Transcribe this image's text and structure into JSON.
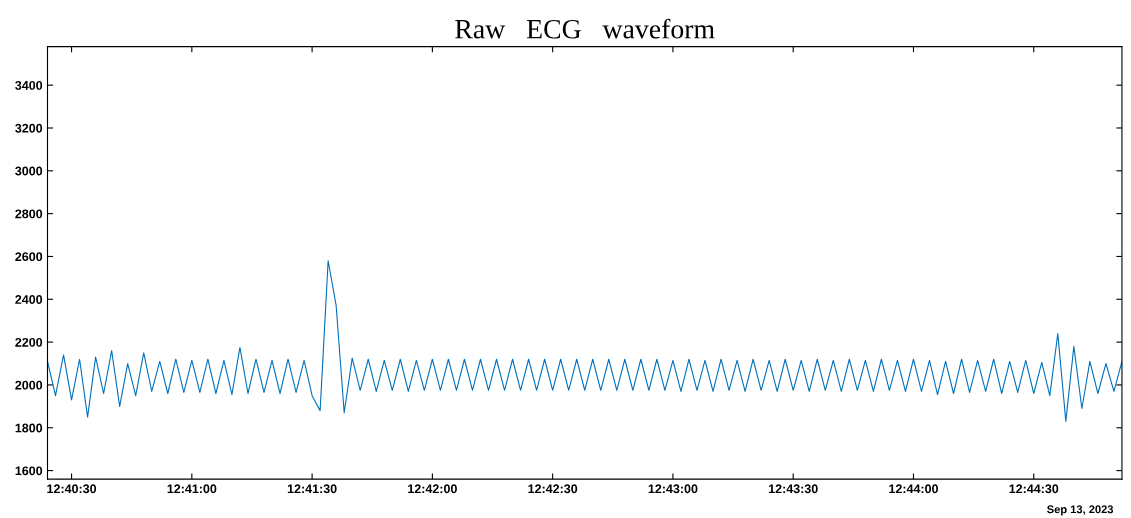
{
  "chart_data": {
    "type": "line",
    "title": "Raw   ECG   waveform",
    "x": [
      "2023-09-13T12:40:24",
      "2023-09-13T12:40:26",
      "2023-09-13T12:40:28",
      "2023-09-13T12:40:30",
      "2023-09-13T12:40:32",
      "2023-09-13T12:40:34",
      "2023-09-13T12:40:36",
      "2023-09-13T12:40:38",
      "2023-09-13T12:40:40",
      "2023-09-13T12:40:42",
      "2023-09-13T12:40:44",
      "2023-09-13T12:40:46",
      "2023-09-13T12:40:48",
      "2023-09-13T12:40:50",
      "2023-09-13T12:40:52",
      "2023-09-13T12:40:54",
      "2023-09-13T12:40:56",
      "2023-09-13T12:40:58",
      "2023-09-13T12:41:00",
      "2023-09-13T12:41:02",
      "2023-09-13T12:41:04",
      "2023-09-13T12:41:06",
      "2023-09-13T12:41:08",
      "2023-09-13T12:41:10",
      "2023-09-13T12:41:12",
      "2023-09-13T12:41:14",
      "2023-09-13T12:41:16",
      "2023-09-13T12:41:18",
      "2023-09-13T12:41:20",
      "2023-09-13T12:41:22",
      "2023-09-13T12:41:24",
      "2023-09-13T12:41:26",
      "2023-09-13T12:41:28",
      "2023-09-13T12:41:30",
      "2023-09-13T12:41:32",
      "2023-09-13T12:41:34",
      "2023-09-13T12:41:36",
      "2023-09-13T12:41:38",
      "2023-09-13T12:41:40",
      "2023-09-13T12:41:42",
      "2023-09-13T12:41:44",
      "2023-09-13T12:41:46",
      "2023-09-13T12:41:48",
      "2023-09-13T12:41:50",
      "2023-09-13T12:41:52",
      "2023-09-13T12:41:54",
      "2023-09-13T12:41:56",
      "2023-09-13T12:41:58",
      "2023-09-13T12:42:00",
      "2023-09-13T12:42:02",
      "2023-09-13T12:42:04",
      "2023-09-13T12:42:06",
      "2023-09-13T12:42:08",
      "2023-09-13T12:42:10",
      "2023-09-13T12:42:12",
      "2023-09-13T12:42:14",
      "2023-09-13T12:42:16",
      "2023-09-13T12:42:18",
      "2023-09-13T12:42:20",
      "2023-09-13T12:42:22",
      "2023-09-13T12:42:24",
      "2023-09-13T12:42:26",
      "2023-09-13T12:42:28",
      "2023-09-13T12:42:30",
      "2023-09-13T12:42:32",
      "2023-09-13T12:42:34",
      "2023-09-13T12:42:36",
      "2023-09-13T12:42:38",
      "2023-09-13T12:42:40",
      "2023-09-13T12:42:42",
      "2023-09-13T12:42:44",
      "2023-09-13T12:42:46",
      "2023-09-13T12:42:48",
      "2023-09-13T12:42:50",
      "2023-09-13T12:42:52",
      "2023-09-13T12:42:54",
      "2023-09-13T12:42:56",
      "2023-09-13T12:42:58",
      "2023-09-13T12:43:00",
      "2023-09-13T12:43:02",
      "2023-09-13T12:43:04",
      "2023-09-13T12:43:06",
      "2023-09-13T12:43:08",
      "2023-09-13T12:43:10",
      "2023-09-13T12:43:12",
      "2023-09-13T12:43:14",
      "2023-09-13T12:43:16",
      "2023-09-13T12:43:18",
      "2023-09-13T12:43:20",
      "2023-09-13T12:43:22",
      "2023-09-13T12:43:24",
      "2023-09-13T12:43:26",
      "2023-09-13T12:43:28",
      "2023-09-13T12:43:30",
      "2023-09-13T12:43:32",
      "2023-09-13T12:43:34",
      "2023-09-13T12:43:36",
      "2023-09-13T12:43:38",
      "2023-09-13T12:43:40",
      "2023-09-13T12:43:42",
      "2023-09-13T12:43:44",
      "2023-09-13T12:43:46",
      "2023-09-13T12:43:48",
      "2023-09-13T12:43:50",
      "2023-09-13T12:43:52",
      "2023-09-13T12:43:54",
      "2023-09-13T12:43:56",
      "2023-09-13T12:43:58",
      "2023-09-13T12:44:00",
      "2023-09-13T12:44:02",
      "2023-09-13T12:44:04",
      "2023-09-13T12:44:06",
      "2023-09-13T12:44:08",
      "2023-09-13T12:44:10",
      "2023-09-13T12:44:12",
      "2023-09-13T12:44:14",
      "2023-09-13T12:44:16",
      "2023-09-13T12:44:18",
      "2023-09-13T12:44:20",
      "2023-09-13T12:44:22",
      "2023-09-13T12:44:24",
      "2023-09-13T12:44:26",
      "2023-09-13T12:44:28",
      "2023-09-13T12:44:30",
      "2023-09-13T12:44:32",
      "2023-09-13T12:44:34",
      "2023-09-13T12:44:36",
      "2023-09-13T12:44:38",
      "2023-09-13T12:44:40",
      "2023-09-13T12:44:42",
      "2023-09-13T12:44:44",
      "2023-09-13T12:44:46",
      "2023-09-13T12:44:48",
      "2023-09-13T12:44:50",
      "2023-09-13T12:44:52"
    ],
    "series": [
      {
        "color": "#0072bd",
        "values": [
          2110,
          1950,
          2140,
          1930,
          2120,
          1850,
          2130,
          1960,
          2160,
          1900,
          2100,
          1950,
          2150,
          1970,
          2110,
          1960,
          2120,
          1965,
          2115,
          1965,
          2120,
          1960,
          2115,
          1955,
          2175,
          1960,
          2120,
          1965,
          2115,
          1960,
          2120,
          1965,
          2115,
          1950,
          1880,
          2580,
          2370,
          1870,
          2125,
          1975,
          2120,
          1970,
          2115,
          1975,
          2120,
          1970,
          2115,
          1975,
          2120,
          1975,
          2120,
          1975,
          2120,
          1975,
          2120,
          1975,
          2120,
          1975,
          2120,
          1975,
          2120,
          1975,
          2120,
          1975,
          2120,
          1975,
          2120,
          1975,
          2120,
          1975,
          2120,
          1975,
          2120,
          1975,
          2120,
          1975,
          2120,
          1975,
          2115,
          1970,
          2120,
          1975,
          2115,
          1970,
          2120,
          1975,
          2115,
          1970,
          2120,
          1975,
          2115,
          1970,
          2120,
          1975,
          2115,
          1970,
          2120,
          1975,
          2115,
          1970,
          2120,
          1975,
          2115,
          1970,
          2120,
          1975,
          2115,
          1970,
          2120,
          1970,
          2115,
          1955,
          2110,
          1960,
          2120,
          1965,
          2115,
          1970,
          2120,
          1960,
          2110,
          1965,
          2115,
          1960,
          2105,
          1950,
          2240,
          1830,
          2180,
          1890,
          2110,
          1960,
          2100,
          1970,
          2110
        ]
      }
    ],
    "xlim": [
      "2023-09-13T12:40:24",
      "2023-09-13T12:44:52"
    ],
    "xticks": [
      {
        "value": "2023-09-13T12:40:30",
        "label": "12:40:30"
      },
      {
        "value": "2023-09-13T12:41:00",
        "label": "12:41:00"
      },
      {
        "value": "2023-09-13T12:41:30",
        "label": "12:41:30"
      },
      {
        "value": "2023-09-13T12:42:00",
        "label": "12:42:00"
      },
      {
        "value": "2023-09-13T12:42:30",
        "label": "12:42:30"
      },
      {
        "value": "2023-09-13T12:43:00",
        "label": "12:43:00"
      },
      {
        "value": "2023-09-13T12:43:30",
        "label": "12:43:30"
      },
      {
        "value": "2023-09-13T12:44:00",
        "label": "12:44:00"
      },
      {
        "value": "2023-09-13T12:44:30",
        "label": "12:44:30"
      }
    ],
    "ylim": [
      1560,
      3580
    ],
    "yticks": [
      1600,
      1800,
      2000,
      2200,
      2400,
      2600,
      2800,
      3000,
      3200,
      3400
    ],
    "annotations": [
      "Sep 13, 2023"
    ],
    "grid": false,
    "legend": false,
    "marker": "none",
    "line_style": "solid"
  }
}
